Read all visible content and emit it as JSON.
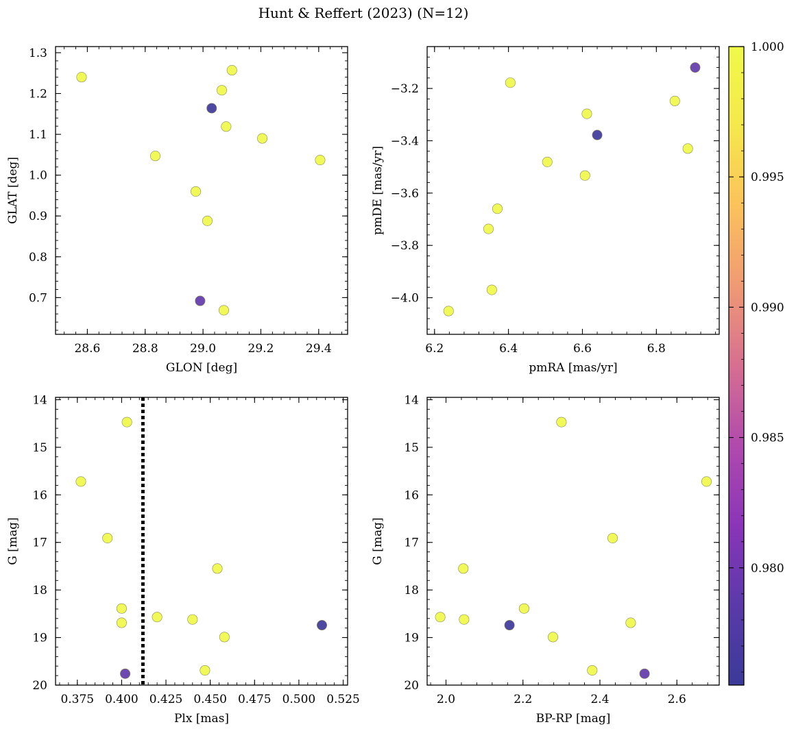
{
  "figure": {
    "title": "Hunt & Reffert (2023) (N=12)"
  },
  "colorbar": {
    "colormap": "plasma",
    "range": [
      0.9755,
      1.0
    ],
    "ticks": [
      "1.000",
      "0.995",
      "0.990",
      "0.985",
      "0.980"
    ],
    "tick_values": [
      1.0,
      0.995,
      0.99,
      0.985,
      0.98
    ],
    "colors": [
      "#3b3a98",
      "#5a3aa8",
      "#8a35b8",
      "#b04aad",
      "#d66f91",
      "#ef9a74",
      "#fbc25c",
      "#f5e84c",
      "#f0f94a"
    ]
  },
  "chart_data": [
    {
      "type": "scatter",
      "xlabel": "GLON [deg]",
      "ylabel": "GLAT [deg]",
      "xlim": [
        28.49,
        29.5
      ],
      "ylim": [
        0.61,
        1.315
      ],
      "y_inverted": false,
      "xticks": [
        28.6,
        28.8,
        29.0,
        29.2,
        29.4
      ],
      "xtick_labels": [
        "28.6",
        "28.8",
        "29.0",
        "29.2",
        "29.4"
      ],
      "yticks": [
        0.7,
        0.8,
        0.9,
        1.0,
        1.1,
        1.2,
        1.3
      ],
      "ytick_labels": [
        "0.7",
        "0.8",
        "0.9",
        "1.0",
        "1.1",
        "1.2",
        "1.3"
      ],
      "x": [
        28.58,
        29.1,
        29.065,
        29.08,
        29.205,
        28.835,
        29.405,
        28.975,
        29.015,
        29.072,
        29.03,
        28.99
      ],
      "y": [
        1.24,
        1.257,
        1.208,
        1.119,
        1.09,
        1.047,
        1.037,
        0.96,
        0.888,
        0.669,
        1.164,
        0.692
      ],
      "prob": [
        1.0,
        1.0,
        1.0,
        1.0,
        1.0,
        1.0,
        1.0,
        1.0,
        1.0,
        1.0,
        0.9758,
        0.979
      ]
    },
    {
      "type": "scatter",
      "xlabel": "pmRA [mas/yr]",
      "ylabel": "pmDE [mas/yr]",
      "xlim": [
        6.18,
        6.97
      ],
      "ylim": [
        -4.14,
        -3.04
      ],
      "y_inverted": false,
      "xticks": [
        6.2,
        6.4,
        6.6,
        6.8
      ],
      "xtick_labels": [
        "6.2",
        "6.4",
        "6.6",
        "6.8"
      ],
      "yticks": [
        -4.0,
        -3.8,
        -3.6,
        -3.4,
        -3.2
      ],
      "ytick_labels": [
        "−4.0",
        "−3.8",
        "−3.6",
        "−3.4",
        "−3.2"
      ],
      "x": [
        6.405,
        6.612,
        6.85,
        6.885,
        6.505,
        6.607,
        6.37,
        6.346,
        6.355,
        6.238,
        6.64,
        6.905
      ],
      "y": [
        -3.178,
        -3.297,
        -3.248,
        -3.43,
        -3.481,
        -3.533,
        -3.66,
        -3.737,
        -3.97,
        -4.051,
        -3.378,
        -3.12
      ],
      "prob": [
        1.0,
        1.0,
        1.0,
        1.0,
        1.0,
        1.0,
        1.0,
        1.0,
        1.0,
        1.0,
        0.9758,
        0.979
      ]
    },
    {
      "type": "scatter",
      "xlabel": "Plx [mas]",
      "ylabel": "G [mag]",
      "xlim": [
        0.3627,
        0.5275
      ],
      "ylim": [
        20.0,
        13.95
      ],
      "y_inverted": true,
      "xticks": [
        0.375,
        0.4,
        0.425,
        0.45,
        0.475,
        0.5,
        0.525
      ],
      "xtick_labels": [
        "0.375",
        "0.400",
        "0.425",
        "0.450",
        "0.475",
        "0.500",
        "0.525"
      ],
      "yticks": [
        14,
        15,
        16,
        17,
        18,
        19,
        20
      ],
      "ytick_labels": [
        "14",
        "15",
        "16",
        "17",
        "18",
        "19",
        "20"
      ],
      "vline": 0.412,
      "x": [
        0.403,
        0.377,
        0.392,
        0.454,
        0.4,
        0.4,
        0.42,
        0.44,
        0.458,
        0.447,
        0.513,
        0.402
      ],
      "y": [
        14.47,
        15.72,
        16.91,
        17.55,
        18.39,
        18.69,
        18.57,
        18.62,
        18.99,
        19.69,
        18.74,
        19.76
      ],
      "prob": [
        1.0,
        1.0,
        1.0,
        1.0,
        1.0,
        1.0,
        1.0,
        1.0,
        1.0,
        1.0,
        0.9758,
        0.979
      ]
    },
    {
      "type": "scatter",
      "xlabel": "BP-RP [mag]",
      "ylabel": "G [mag]",
      "xlim": [
        1.951,
        2.71
      ],
      "ylim": [
        20.0,
        13.95
      ],
      "y_inverted": true,
      "xticks": [
        2.0,
        2.2,
        2.4,
        2.6
      ],
      "xtick_labels": [
        "2.0",
        "2.2",
        "2.4",
        "2.6"
      ],
      "yticks": [
        14,
        15,
        16,
        17,
        18,
        19,
        20
      ],
      "ytick_labels": [
        "14",
        "15",
        "16",
        "17",
        "18",
        "19",
        "20"
      ],
      "x": [
        2.3,
        2.677,
        2.433,
        2.045,
        2.203,
        1.985,
        2.047,
        2.48,
        2.278,
        2.38,
        2.165,
        2.516
      ],
      "y": [
        14.47,
        15.72,
        16.91,
        17.55,
        18.39,
        18.57,
        18.62,
        18.69,
        18.99,
        19.69,
        18.74,
        19.76
      ],
      "prob": [
        1.0,
        1.0,
        1.0,
        1.0,
        1.0,
        1.0,
        1.0,
        1.0,
        1.0,
        1.0,
        0.9758,
        0.979
      ]
    }
  ]
}
